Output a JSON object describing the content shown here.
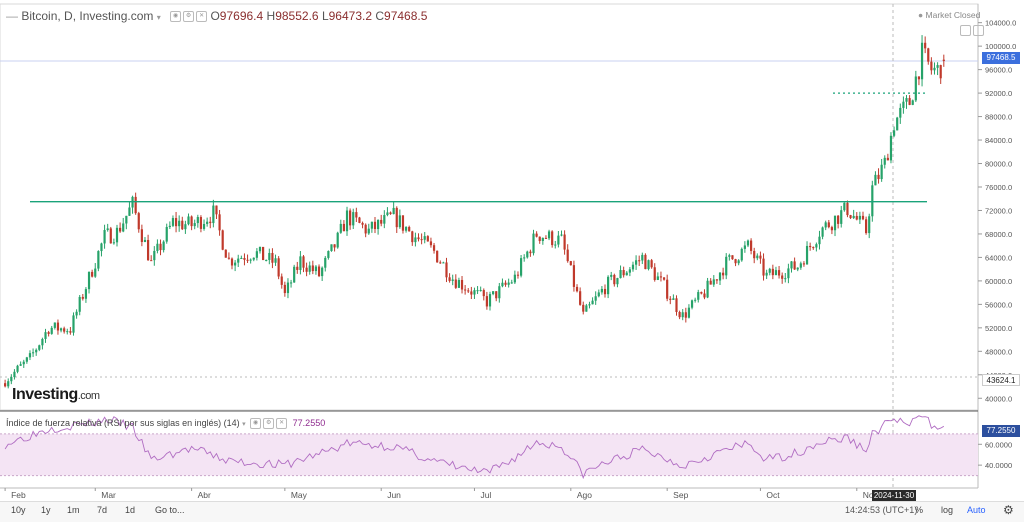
{
  "header": {
    "symbol": "Bitcoin, D, Investing.com",
    "open_label": "O",
    "open": "97696.4",
    "high_label": "H",
    "high": "98552.6",
    "low_label": "L",
    "low": "96473.2",
    "close_label": "C",
    "close": "97468.5",
    "market_status": "Market Closed"
  },
  "price_tags": {
    "last": "97468.5",
    "left": "43624.1",
    "rsi": "77.2550"
  },
  "brand": {
    "logo_main": "Investing",
    "logo_suffix": ".com"
  },
  "indicator": {
    "title": "Índice de fuerza relativa (RSI por sus siglas en inglés) (14)",
    "value": "77.2550",
    "upper": 70,
    "lower": 30
  },
  "crosshair_date": "2024-11-30",
  "footer": {
    "timeframes": [
      "10y",
      "1y",
      "1m",
      "7d",
      "1d"
    ],
    "goto": "Go to...",
    "time": "14:24:53",
    "tz": "(UTC+1)",
    "percent": "%",
    "log": "log",
    "auto": "Auto"
  },
  "colors": {
    "up": "#26a269",
    "down": "#c0392b",
    "level_line": "#1aa37a",
    "rsi_line": "#b06cc2",
    "rsi_band": "#f4e4f4",
    "last_tag": "#3b6fdd"
  },
  "chart_data": {
    "type": "candlestick",
    "title": "Bitcoin, D, Investing.com",
    "y_ticks": [
      40000,
      44000,
      48000,
      52000,
      56000,
      60000,
      64000,
      68000,
      72000,
      76000,
      80000,
      84000,
      88000,
      92000,
      96000,
      100000,
      104000
    ],
    "y_tick_labels": [
      "40000.0",
      "44000.0",
      "48000.0",
      "52000.0",
      "56000.0",
      "60000.0",
      "64000.0",
      "68000.0",
      "72000.0",
      "76000.0",
      "80000.0",
      "84000.0",
      "88000.0",
      "92000.0",
      "96000.0",
      "100000.0",
      "104000.0"
    ],
    "x_tick_labels": [
      "Feb",
      "Mar",
      "Abr",
      "May",
      "Jun",
      "Jul",
      "Ago",
      "Sep",
      "Oct",
      "Nov"
    ],
    "ylim": [
      38000,
      106500
    ],
    "horizontal_levels": [
      73500
    ],
    "dotted_level": 92000,
    "close_path": [
      [
        "2024-02-01",
        43000
      ],
      [
        "2024-02-09",
        46800
      ],
      [
        "2024-02-15",
        52000
      ],
      [
        "2024-02-22",
        51800
      ],
      [
        "2024-02-28",
        60500
      ],
      [
        "2024-03-04",
        67500
      ],
      [
        "2024-03-08",
        68300
      ],
      [
        "2024-03-13",
        73000
      ],
      [
        "2024-03-19",
        63000
      ],
      [
        "2024-03-26",
        70000
      ],
      [
        "2024-04-01",
        69500
      ],
      [
        "2024-04-08",
        71500
      ],
      [
        "2024-04-13",
        63500
      ],
      [
        "2024-04-21",
        64900
      ],
      [
        "2024-04-28",
        63000
      ],
      [
        "2024-05-01",
        57500
      ],
      [
        "2024-05-06",
        63500
      ],
      [
        "2024-05-12",
        61000
      ],
      [
        "2024-05-18",
        67000
      ],
      [
        "2024-05-21",
        71000
      ],
      [
        "2024-05-28",
        68500
      ],
      [
        "2024-06-05",
        71000
      ],
      [
        "2024-06-12",
        67500
      ],
      [
        "2024-06-18",
        65000
      ],
      [
        "2024-06-24",
        60500
      ],
      [
        "2024-07-05",
        56500
      ],
      [
        "2024-07-14",
        60500
      ],
      [
        "2024-07-21",
        68000
      ],
      [
        "2024-07-29",
        66800
      ],
      [
        "2024-08-05",
        54000
      ],
      [
        "2024-08-12",
        59000
      ],
      [
        "2024-08-24",
        64000
      ],
      [
        "2024-08-31",
        59000
      ],
      [
        "2024-09-06",
        54000
      ],
      [
        "2024-09-13",
        58000
      ],
      [
        "2024-09-20",
        63000
      ],
      [
        "2024-09-27",
        65800
      ],
      [
        "2024-10-03",
        60800
      ],
      [
        "2024-10-13",
        62500
      ],
      [
        "2024-10-20",
        68500
      ],
      [
        "2024-10-29",
        72300
      ],
      [
        "2024-11-04",
        68500
      ],
      [
        "2024-11-06",
        75800
      ],
      [
        "2024-11-10",
        80000
      ],
      [
        "2024-11-13",
        87000
      ],
      [
        "2024-11-18",
        90500
      ],
      [
        "2024-11-22",
        98500
      ],
      [
        "2024-11-25",
        96000
      ],
      [
        "2024-11-27",
        95800
      ],
      [
        "2024-11-29",
        97468.5
      ]
    ],
    "rsi_ylim": [
      20,
      90
    ],
    "rsi_ticks": [
      40,
      60
    ],
    "rsi_tick_labels": [
      "40.0000",
      "60.0000"
    ],
    "rsi_path": [
      [
        "2024-02-01",
        60
      ],
      [
        "2024-02-15",
        75
      ],
      [
        "2024-02-28",
        80
      ],
      [
        "2024-03-05",
        84
      ],
      [
        "2024-03-13",
        76
      ],
      [
        "2024-03-19",
        45
      ],
      [
        "2024-04-01",
        56
      ],
      [
        "2024-04-13",
        44
      ],
      [
        "2024-05-01",
        40
      ],
      [
        "2024-05-18",
        57
      ],
      [
        "2024-05-21",
        61
      ],
      [
        "2024-06-05",
        58
      ],
      [
        "2024-06-18",
        44
      ],
      [
        "2024-06-26",
        38
      ],
      [
        "2024-07-05",
        32
      ],
      [
        "2024-07-14",
        47
      ],
      [
        "2024-07-21",
        62
      ],
      [
        "2024-07-29",
        58
      ],
      [
        "2024-08-05",
        32
      ],
      [
        "2024-08-12",
        42
      ],
      [
        "2024-08-24",
        55
      ],
      [
        "2024-09-06",
        40
      ],
      [
        "2024-09-20",
        55
      ],
      [
        "2024-09-27",
        60
      ],
      [
        "2024-10-03",
        45
      ],
      [
        "2024-10-13",
        52
      ],
      [
        "2024-10-20",
        62
      ],
      [
        "2024-10-29",
        66
      ],
      [
        "2024-11-04",
        54
      ],
      [
        "2024-11-06",
        70
      ],
      [
        "2024-11-13",
        85
      ],
      [
        "2024-11-18",
        78
      ],
      [
        "2024-11-22",
        88
      ],
      [
        "2024-11-25",
        79
      ],
      [
        "2024-11-29",
        77.255
      ]
    ]
  }
}
